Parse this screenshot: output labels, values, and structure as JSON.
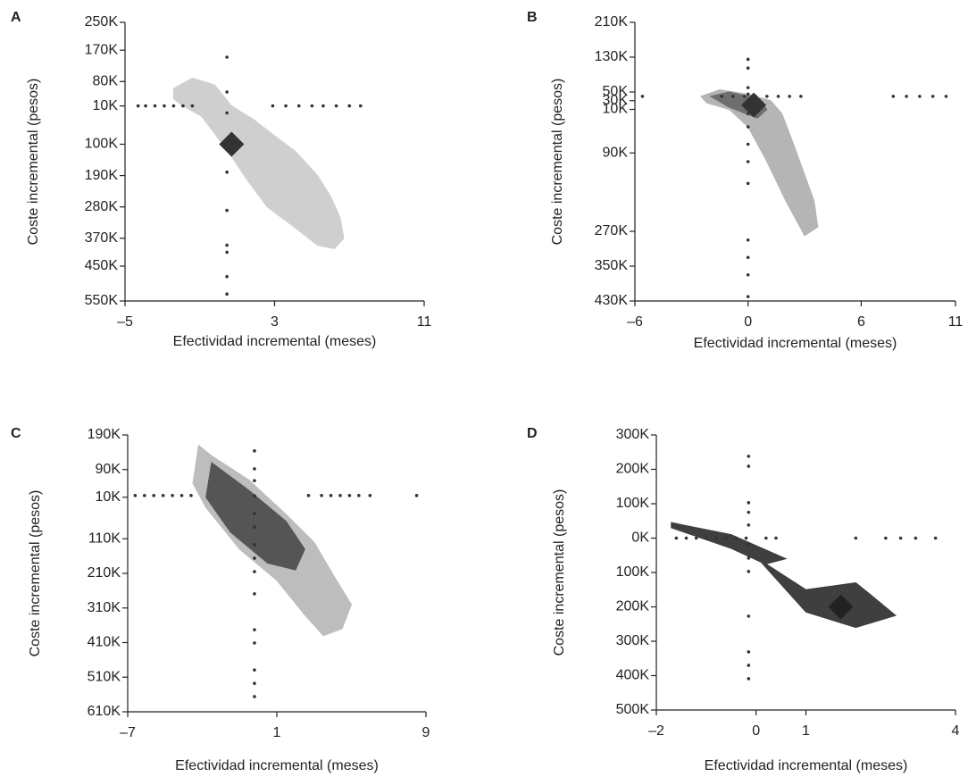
{
  "chart_data": [
    {
      "type": "scatter",
      "label": "A",
      "xlabel": "Efectividad incremental (meses)",
      "ylabel": "Coste incremental (pesos)",
      "xlim": [
        -5,
        11
      ],
      "ylim": [
        -550000,
        250000
      ],
      "xticks": [
        {
          "value": -5,
          "label": "–5"
        },
        3,
        11
      ],
      "yticks": [
        {
          "value": 250000,
          "label": "250K"
        },
        {
          "value": 170000,
          "label": "170K"
        },
        {
          "value": 80000,
          "label": "80K"
        },
        {
          "value": 10000,
          "label": "10K"
        },
        {
          "value": -100000,
          "label": "100K"
        },
        {
          "value": -190000,
          "label": "190K"
        },
        {
          "value": -280000,
          "label": "280K"
        },
        {
          "value": -370000,
          "label": "370K"
        },
        {
          "value": -450000,
          "label": "450K"
        },
        {
          "value": -550000,
          "label": "550K"
        }
      ],
      "point_color": "#333",
      "points": {
        "x": [
          -4.3,
          -3.9,
          -3.4,
          -2.9,
          -2.4,
          -1.9,
          -1.4,
          2.9,
          3.6,
          4.3,
          5.0,
          5.6,
          6.3,
          7.0,
          7.6,
          0.45,
          0.45,
          0.45,
          0.45,
          0.45,
          0.45,
          0.45,
          0.45,
          0.45
        ],
        "y": [
          10000,
          10000,
          10000,
          10000,
          10000,
          10000,
          10000,
          10000,
          10000,
          10000,
          10000,
          10000,
          10000,
          10000,
          10000,
          150000,
          50000,
          -10000,
          -180000,
          -290000,
          -390000,
          -410000,
          -480000,
          -530000
        ]
      },
      "regions": [
        {
          "color": "#cfcfcf",
          "x": [
            -2.4,
            -1.4,
            -0.2,
            0.7,
            1.9,
            3.1,
            4.1,
            5.3,
            6.0,
            6.5,
            6.7,
            6.2,
            5.3,
            4.1,
            2.6,
            1.5,
            0.5,
            -0.2,
            -0.9,
            -1.9,
            -2.4
          ],
          "y": [
            60000,
            90000,
            70000,
            10000,
            -30000,
            -80000,
            -120000,
            -190000,
            -250000,
            -310000,
            -370000,
            -400000,
            -390000,
            -340000,
            -280000,
            -200000,
            -120000,
            -70000,
            -20000,
            10000,
            30000
          ]
        }
      ],
      "centroid_color": "#333",
      "centroid": {
        "x": 0.7,
        "y": -100000
      }
    },
    {
      "type": "scatter",
      "label": "B",
      "xlabel": "Efectividad incremental (meses)",
      "ylabel": "Coste incremental (pesos)",
      "xlim": [
        -6,
        11
      ],
      "ylim": [
        -430000,
        210000
      ],
      "xticks": [
        {
          "value": -6,
          "label": "–6"
        },
        0,
        6,
        11
      ],
      "yticks": [
        {
          "value": 210000,
          "label": "210K"
        },
        {
          "value": 130000,
          "label": "130K"
        },
        {
          "value": 50000,
          "label": "50K"
        },
        {
          "value": 30000,
          "label": "30K"
        },
        {
          "value": 10000,
          "label": "10K"
        },
        {
          "value": -90000,
          "label": "90K"
        },
        {
          "value": -270000,
          "label": "270K"
        },
        {
          "value": -350000,
          "label": "350K"
        },
        {
          "value": -430000,
          "label": "430K"
        }
      ],
      "point_color": "#333",
      "points": {
        "x": [
          -5.6,
          -1.4,
          -0.8,
          -0.2,
          0.4,
          1.0,
          1.6,
          2.2,
          2.8,
          7.7,
          8.4,
          9.1,
          9.8,
          10.5,
          0,
          0,
          0,
          0,
          0,
          0,
          0,
          0,
          0,
          0,
          0,
          0,
          0,
          0
        ],
        "y": [
          40000,
          40000,
          40000,
          40000,
          40000,
          40000,
          40000,
          40000,
          40000,
          40000,
          40000,
          40000,
          40000,
          40000,
          125000,
          105000,
          60000,
          45000,
          30000,
          0,
          -30000,
          -70000,
          -110000,
          -160000,
          -290000,
          -330000,
          -370000,
          -420000
        ]
      },
      "regions": [
        {
          "color": "#b5b5b5",
          "x": [
            -2.5,
            -1.5,
            0,
            1.2,
            1.8,
            2.5,
            3.5,
            3.7,
            3.0,
            2.0,
            1.0,
            0,
            -1.0,
            -2.2
          ],
          "y": [
            40000,
            55000,
            45000,
            30000,
            0,
            -80000,
            -200000,
            -260000,
            -280000,
            -200000,
            -110000,
            -30000,
            10000,
            25000
          ]
        },
        {
          "color": "#6e6e6e",
          "x": [
            -2.0,
            -1.0,
            0.5,
            1.0,
            0.5,
            -1.0
          ],
          "y": [
            40000,
            50000,
            35000,
            10000,
            -10000,
            15000
          ]
        }
      ],
      "centroid_color": "#333",
      "centroid": {
        "x": 0.3,
        "y": 20000
      }
    },
    {
      "type": "scatter",
      "label": "C",
      "xlabel": "Efectividad incremental (meses)",
      "ylabel": "Coste incremental (pesos)",
      "xlim": [
        -7,
        9
      ],
      "ylim": [
        -610000,
        190000
      ],
      "xticks": [
        {
          "value": -7,
          "label": "–7"
        },
        1,
        9
      ],
      "yticks": [
        {
          "value": 190000,
          "label": "190K"
        },
        {
          "value": 90000,
          "label": "90K"
        },
        {
          "value": 10000,
          "label": "10K"
        },
        {
          "value": -110000,
          "label": "110K"
        },
        {
          "value": -210000,
          "label": "210K"
        },
        {
          "value": -310000,
          "label": "310K"
        },
        {
          "value": -410000,
          "label": "410K"
        },
        {
          "value": -510000,
          "label": "510K"
        },
        {
          "value": -610000,
          "label": "610K"
        }
      ],
      "point_color": "#333",
      "points": {
        "x": [
          -6.6,
          -6.1,
          -5.6,
          -5.1,
          -4.6,
          -4.1,
          -3.6,
          2.7,
          3.4,
          3.9,
          4.4,
          4.9,
          5.4,
          6.0,
          8.5,
          -0.2,
          -0.2,
          -0.2,
          -0.2,
          -0.2,
          -0.2,
          -0.2,
          -0.2,
          -0.2,
          -0.2,
          -0.2,
          -0.2,
          -0.2,
          -0.2,
          -0.2
        ],
        "y": [
          15000,
          15000,
          15000,
          15000,
          15000,
          15000,
          15000,
          15000,
          15000,
          15000,
          15000,
          15000,
          15000,
          15000,
          15000,
          144000,
          92000,
          58000,
          14000,
          -37000,
          -76000,
          -127000,
          -166000,
          -205000,
          -269000,
          -373000,
          -411000,
          -489000,
          -528000,
          -566000
        ]
      },
      "regions": [
        {
          "color": "#bdbdbd",
          "x": [
            -3.2,
            -2.5,
            -0.5,
            1.5,
            3.0,
            4.2,
            5.0,
            4.5,
            3.5,
            2.5,
            1.0,
            -1.0,
            -2.8,
            -3.5
          ],
          "y": [
            160000,
            130000,
            60000,
            -40000,
            -120000,
            -230000,
            -300000,
            -370000,
            -390000,
            -330000,
            -230000,
            -140000,
            -20000,
            50000
          ]
        },
        {
          "color": "#555555",
          "x": [
            -2.5,
            -0.5,
            1.5,
            2.5,
            2.0,
            0.5,
            -1.5,
            -2.8
          ],
          "y": [
            110000,
            30000,
            -60000,
            -140000,
            -200000,
            -180000,
            -90000,
            10000
          ]
        }
      ]
    },
    {
      "type": "scatter",
      "label": "D",
      "xlabel": "Efectividad incremental (meses)",
      "ylabel": "Coste incremental (pesos)",
      "xlim": [
        -2,
        4
      ],
      "ylim": [
        -500000,
        300000
      ],
      "xticks": [
        {
          "value": -2,
          "label": "–2"
        },
        0,
        1,
        4
      ],
      "yticks": [
        {
          "value": 300000,
          "label": "300K"
        },
        {
          "value": 200000,
          "label": "200K"
        },
        {
          "value": 100000,
          "label": "100K"
        },
        {
          "value": 0,
          "label": "0K"
        },
        {
          "value": -100000,
          "label": "100K"
        },
        {
          "value": -200000,
          "label": "200K"
        },
        {
          "value": -300000,
          "label": "300K"
        },
        {
          "value": -400000,
          "label": "400K"
        },
        {
          "value": -500000,
          "label": "500K"
        }
      ],
      "point_color": "#333",
      "points": {
        "x": [
          -1.6,
          -1.4,
          -1.2,
          -1.0,
          -0.8,
          -0.6,
          -0.4,
          -0.2,
          0.2,
          0.4,
          2.0,
          2.6,
          2.9,
          3.2,
          3.6,
          -0.15,
          -0.15,
          -0.15,
          -0.15,
          -0.15,
          -0.15,
          -0.15,
          -0.15,
          -0.15,
          -0.15,
          -0.15,
          -0.15
        ],
        "y": [
          0,
          0,
          0,
          0,
          0,
          0,
          0,
          0,
          0,
          0,
          0,
          0,
          0,
          0,
          0,
          238000,
          209000,
          103000,
          75000,
          38000,
          -19000,
          -58000,
          -97000,
          -227000,
          -331000,
          -370000,
          -409000
        ]
      },
      "regions": [
        {
          "color": "#3f3f3f",
          "x": [
            -1.7,
            -0.5,
            0.6,
            0.2,
            1.0,
            2.0,
            2.3,
            2.8,
            2.0,
            1.0,
            0.1,
            -0.5,
            -1.7
          ],
          "y": [
            45000,
            10000,
            -60000,
            -75000,
            -150000,
            -130000,
            -165000,
            -225000,
            -260000,
            -215000,
            -70000,
            -30000,
            30000
          ]
        }
      ],
      "centroid_color": "#222",
      "centroid": {
        "x": 1.7,
        "y": -200000
      }
    }
  ]
}
